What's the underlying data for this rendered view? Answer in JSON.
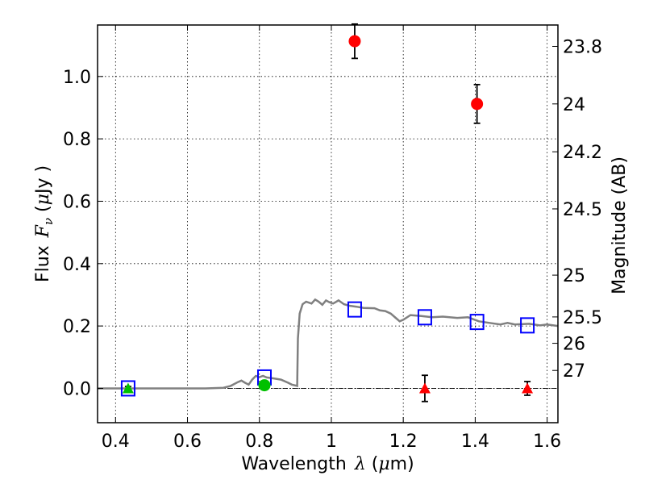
{
  "chart_data": {
    "type": "scatter",
    "title": "",
    "xlabel_prefix": "Wavelength",
    "xlabel_lambda": "λ",
    "xlabel_open": " (",
    "xlabel_mu": "μ",
    "xlabel_unit": "m)",
    "ylabel_prefix": "Flux",
    "ylabel_F": "F",
    "ylabel_sub": "ν",
    "ylabel_open": " (",
    "ylabel_mu": "μ",
    "ylabel_unit": "Jy )",
    "y2label": "Magnitude (AB)",
    "xlim": [
      0.35,
      1.63
    ],
    "ylim": [
      -0.11,
      1.165
    ],
    "grid": true,
    "x_ticks": [
      {
        "value": 0.4,
        "label": "0.4"
      },
      {
        "value": 0.6,
        "label": "0.6"
      },
      {
        "value": 0.8,
        "label": "0.8"
      },
      {
        "value": 1.0,
        "label": "1"
      },
      {
        "value": 1.2,
        "label": "1.2"
      },
      {
        "value": 1.4,
        "label": "1.4"
      },
      {
        "value": 1.6,
        "label": "1.6"
      }
    ],
    "y_ticks": [
      {
        "value": 0.0,
        "label": "0.0"
      },
      {
        "value": 0.2,
        "label": "0.2"
      },
      {
        "value": 0.4,
        "label": "0.4"
      },
      {
        "value": 0.6,
        "label": "0.6"
      },
      {
        "value": 0.8,
        "label": "0.8"
      },
      {
        "value": 1.0,
        "label": "1.0"
      }
    ],
    "mag_ticks": [
      {
        "mag": 23.8,
        "label": "23.8"
      },
      {
        "mag": 24.0,
        "label": "24"
      },
      {
        "mag": 24.2,
        "label": "24.2"
      },
      {
        "mag": 24.5,
        "label": "24.5"
      },
      {
        "mag": 25.0,
        "label": "25"
      },
      {
        "mag": 25.5,
        "label": "25.5"
      },
      {
        "mag": 26.0,
        "label": "26"
      },
      {
        "mag": 27.0,
        "label": "27"
      }
    ],
    "series": [
      {
        "kind": "model_sed",
        "color": "#808080",
        "points": [
          [
            0.35,
            0.0
          ],
          [
            0.5,
            0.0
          ],
          [
            0.65,
            0.0
          ],
          [
            0.7,
            0.002
          ],
          [
            0.72,
            0.008
          ],
          [
            0.74,
            0.02
          ],
          [
            0.75,
            0.025
          ],
          [
            0.76,
            0.018
          ],
          [
            0.77,
            0.012
          ],
          [
            0.78,
            0.028
          ],
          [
            0.79,
            0.04
          ],
          [
            0.8,
            0.036
          ],
          [
            0.81,
            0.04
          ],
          [
            0.82,
            0.035
          ],
          [
            0.84,
            0.032
          ],
          [
            0.86,
            0.028
          ],
          [
            0.88,
            0.018
          ],
          [
            0.89,
            0.012
          ],
          [
            0.905,
            0.008
          ],
          [
            0.907,
            0.16
          ],
          [
            0.912,
            0.24
          ],
          [
            0.92,
            0.27
          ],
          [
            0.93,
            0.278
          ],
          [
            0.945,
            0.272
          ],
          [
            0.955,
            0.285
          ],
          [
            0.965,
            0.278
          ],
          [
            0.975,
            0.268
          ],
          [
            0.985,
            0.282
          ],
          [
            0.995,
            0.276
          ],
          [
            1.005,
            0.272
          ],
          [
            1.02,
            0.282
          ],
          [
            1.035,
            0.27
          ],
          [
            1.05,
            0.265
          ],
          [
            1.07,
            0.262
          ],
          [
            1.09,
            0.258
          ],
          [
            1.12,
            0.257
          ],
          [
            1.135,
            0.25
          ],
          [
            1.15,
            0.248
          ],
          [
            1.165,
            0.24
          ],
          [
            1.18,
            0.225
          ],
          [
            1.19,
            0.215
          ],
          [
            1.2,
            0.22
          ],
          [
            1.22,
            0.235
          ],
          [
            1.25,
            0.232
          ],
          [
            1.28,
            0.228
          ],
          [
            1.31,
            0.23
          ],
          [
            1.35,
            0.226
          ],
          [
            1.38,
            0.228
          ],
          [
            1.41,
            0.215
          ],
          [
            1.44,
            0.21
          ],
          [
            1.47,
            0.205
          ],
          [
            1.49,
            0.21
          ],
          [
            1.51,
            0.205
          ],
          [
            1.55,
            0.207
          ],
          [
            1.58,
            0.202
          ],
          [
            1.6,
            0.205
          ],
          [
            1.63,
            0.2
          ]
        ]
      },
      {
        "kind": "model_photometry",
        "marker": "open-square",
        "color": "#0000ff",
        "points": [
          [
            0.435,
            0.0
          ],
          [
            0.814,
            0.035
          ],
          [
            1.065,
            0.253
          ],
          [
            1.26,
            0.228
          ],
          [
            1.405,
            0.213
          ],
          [
            1.545,
            0.202
          ]
        ]
      },
      {
        "kind": "detections",
        "marker": "circle",
        "color": "#ff0000",
        "points": [
          {
            "x": 1.065,
            "y": 1.113,
            "err": 0.055
          },
          {
            "x": 1.405,
            "y": 0.912,
            "err": 0.062
          }
        ]
      },
      {
        "kind": "detections_optical",
        "marker": "circle",
        "color": "#00c000",
        "points": [
          {
            "x": 0.814,
            "y": 0.01,
            "err": 0.012
          }
        ]
      },
      {
        "kind": "upper_limits_optical",
        "marker": "triangle",
        "color": "#00c000",
        "points": [
          {
            "x": 0.435,
            "y": 0.0,
            "err": 0.006
          }
        ]
      },
      {
        "kind": "upper_limits",
        "marker": "triangle",
        "color": "#ff0000",
        "points": [
          {
            "x": 1.26,
            "y": 0.0,
            "err": 0.042
          },
          {
            "x": 1.545,
            "y": 0.0,
            "err": 0.022
          }
        ]
      }
    ]
  }
}
